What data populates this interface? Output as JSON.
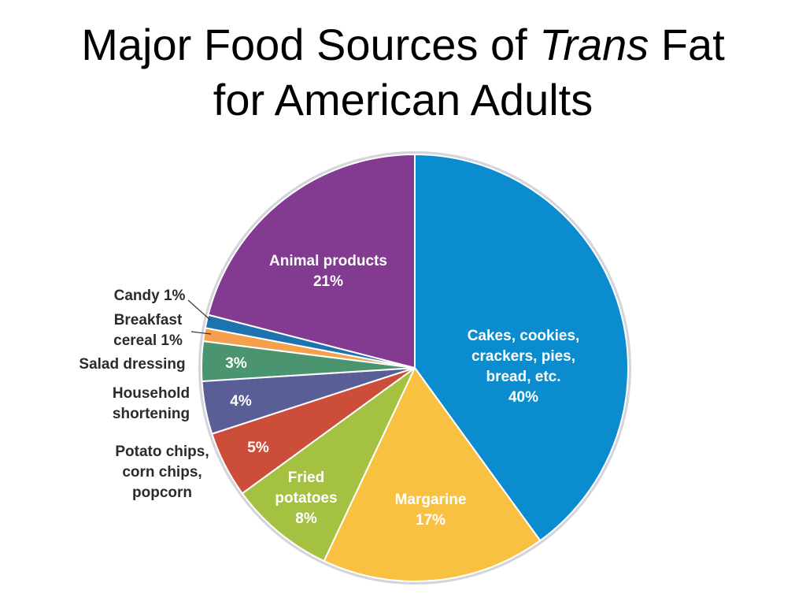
{
  "title": {
    "line1_before": "Major Food Sources of ",
    "line1_italic": "Trans",
    "line1_after": " Fat",
    "line2": "for American Adults"
  },
  "chart_data": {
    "type": "pie",
    "title": "Major Food Sources of Trans Fat for American Adults",
    "start": "12 o'clock",
    "direction": "clockwise",
    "outer_ring_color": "#d4d4dc",
    "slices": [
      {
        "key": "cakes",
        "label_lines": [
          "Cakes, cookies,",
          "crackers, pies,",
          "bread, etc.",
          "40%"
        ],
        "value": 40,
        "color": "#0a8ccf",
        "label_side": "inside"
      },
      {
        "key": "margarine",
        "label_lines": [
          "Margarine",
          "17%"
        ],
        "value": 17,
        "color": "#f9c141",
        "label_side": "inside"
      },
      {
        "key": "fried",
        "label_lines": [
          "Fried",
          "potatoes",
          "8%"
        ],
        "value": 8,
        "color": "#a5c142",
        "label_side": "inside"
      },
      {
        "key": "chips",
        "label_lines": [
          "Potato chips,",
          "corn chips,",
          "popcorn"
        ],
        "value_label": "5%",
        "value": 5,
        "color": "#cc4e3a",
        "label_side": "outside"
      },
      {
        "key": "shortening",
        "label_lines": [
          "Household",
          "shortening"
        ],
        "value_label": "4%",
        "value": 4,
        "color": "#5a5e96",
        "label_side": "outside"
      },
      {
        "key": "salad",
        "label_lines": [
          "Salad dressing"
        ],
        "value_label": "3%",
        "value": 3,
        "color": "#4a9470",
        "label_side": "outside"
      },
      {
        "key": "cereal",
        "label_lines": [
          "Breakfast",
          "cereal 1%"
        ],
        "value": 1,
        "color": "#f5a04d",
        "label_side": "outside-leader"
      },
      {
        "key": "candy",
        "label_lines": [
          "Candy 1%"
        ],
        "value": 1,
        "color": "#1d72b0",
        "label_side": "outside-leader"
      },
      {
        "key": "animal",
        "label_lines": [
          "Animal products",
          "21%"
        ],
        "value": 21,
        "color": "#823b91",
        "label_side": "inside"
      }
    ]
  }
}
